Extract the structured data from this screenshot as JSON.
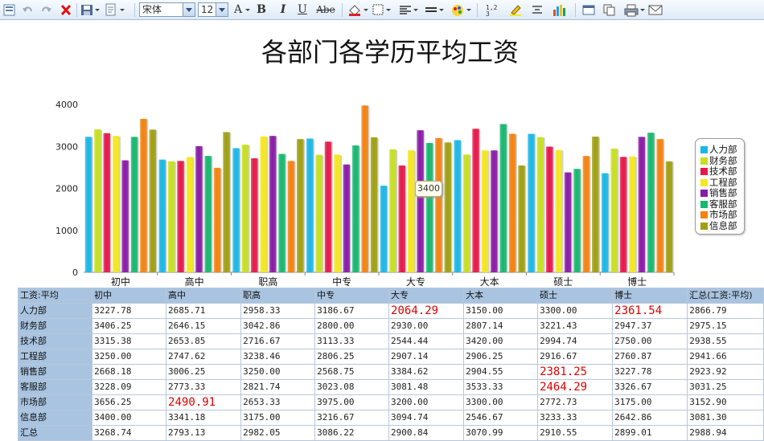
{
  "toolbar": {
    "font_name": "宋体",
    "font_size": "12",
    "bold_label": "B",
    "italic_label": "I",
    "underline_label": "U",
    "strike_label": "Abe",
    "font_color_label": "A",
    "icons": [
      "undo-icon",
      "redo-icon",
      "delete-icon",
      "save-icon",
      "page-setup-icon",
      "font-color-icon",
      "bold-icon",
      "italic-icon",
      "underline-icon",
      "strikethrough-icon",
      "fill-color-icon",
      "border-icon",
      "align-icon",
      "line-style-icon",
      "palette-icon",
      "formula-icon",
      "highlight-icon",
      "format-icon",
      "chart-icon",
      "window-icon",
      "copy-icon",
      "print-icon",
      "mail-icon"
    ]
  },
  "chart_data": {
    "type": "bar",
    "title": "各部门各学历平均工资",
    "categories": [
      "初中",
      "高中",
      "职高",
      "中专",
      "大专",
      "大本",
      "硕士",
      "博士"
    ],
    "ylim": [
      0,
      4000
    ],
    "yticks": [
      "0",
      "1000",
      "2000",
      "3000",
      "4000"
    ],
    "grid": false,
    "legend_position": "right",
    "series": [
      {
        "name": "人力部",
        "color": "#1ab8e8",
        "values": [
          3227.78,
          2685.71,
          2958.33,
          3186.67,
          2064.29,
          3150.0,
          3300.0,
          2361.54
        ]
      },
      {
        "name": "财务部",
        "color": "#c8e020",
        "values": [
          3406.25,
          2646.15,
          3042.86,
          2800.0,
          2930.0,
          2807.14,
          3221.43,
          2947.37
        ]
      },
      {
        "name": "技术部",
        "color": "#e8174a",
        "values": [
          3315.38,
          2653.85,
          2716.67,
          3113.33,
          2544.44,
          3420.0,
          2994.74,
          2750.0
        ]
      },
      {
        "name": "工程部",
        "color": "#f5e81e",
        "values": [
          3250.0,
          2747.62,
          3238.46,
          2806.25,
          2907.14,
          2906.25,
          2916.67,
          2760.87
        ]
      },
      {
        "name": "销售部",
        "color": "#8a1aa8",
        "values": [
          2668.18,
          3006.25,
          3250.0,
          2568.75,
          3384.62,
          2904.55,
          2381.25,
          3227.78
        ]
      },
      {
        "name": "客服部",
        "color": "#16b870",
        "values": [
          3228.09,
          2773.33,
          2821.74,
          3023.08,
          3081.48,
          3533.33,
          2464.29,
          3326.67
        ]
      },
      {
        "name": "市场部",
        "color": "#f5820e",
        "values": [
          3656.25,
          2490.91,
          2653.33,
          3975.0,
          3200.0,
          3300.0,
          2772.73,
          3175.0
        ]
      },
      {
        "name": "信息部",
        "color": "#a0a010",
        "values": [
          3400.0,
          3341.18,
          3175.0,
          3216.67,
          3094.74,
          2546.67,
          3233.33,
          2642.86
        ]
      }
    ],
    "tooltip": "3400"
  },
  "table": {
    "corner": "工资:平均",
    "columns": [
      "初中",
      "高中",
      "职高",
      "中专",
      "大专",
      "大本",
      "硕士",
      "博士",
      "汇总(工资:平均)"
    ],
    "rows": [
      {
        "label": "人力部",
        "cells": [
          "3227.78",
          "2685.71",
          "2958.33",
          "3186.67",
          "2064.29",
          "3150.00",
          "3300.00",
          "2361.54",
          "2866.79"
        ]
      },
      {
        "label": "财务部",
        "cells": [
          "3406.25",
          "2646.15",
          "3042.86",
          "2800.00",
          "2930.00",
          "2807.14",
          "3221.43",
          "2947.37",
          "2975.15"
        ]
      },
      {
        "label": "技术部",
        "cells": [
          "3315.38",
          "2653.85",
          "2716.67",
          "3113.33",
          "2544.44",
          "3420.00",
          "2994.74",
          "2750.00",
          "2938.55"
        ]
      },
      {
        "label": "工程部",
        "cells": [
          "3250.00",
          "2747.62",
          "3238.46",
          "2806.25",
          "2907.14",
          "2906.25",
          "2916.67",
          "2760.87",
          "2941.66"
        ]
      },
      {
        "label": "销售部",
        "cells": [
          "2668.18",
          "3006.25",
          "3250.00",
          "2568.75",
          "3384.62",
          "2904.55",
          "2381.25",
          "3227.78",
          "2923.92"
        ]
      },
      {
        "label": "客服部",
        "cells": [
          "3228.09",
          "2773.33",
          "2821.74",
          "3023.08",
          "3081.48",
          "3533.33",
          "2464.29",
          "3326.67",
          "3031.25"
        ]
      },
      {
        "label": "市场部",
        "cells": [
          "3656.25",
          "2490.91",
          "2653.33",
          "3975.00",
          "3200.00",
          "3300.00",
          "2772.73",
          "3175.00",
          "3152.90"
        ]
      },
      {
        "label": "信息部",
        "cells": [
          "3400.00",
          "3341.18",
          "3175.00",
          "3216.67",
          "3094.74",
          "2546.67",
          "3233.33",
          "2642.86",
          "3081.30"
        ]
      },
      {
        "label": "汇总",
        "cells": [
          "3268.74",
          "2793.13",
          "2982.05",
          "3086.22",
          "2900.84",
          "3070.99",
          "2910.55",
          "2899.01",
          "2988.94"
        ]
      }
    ],
    "highlighted": [
      [
        0,
        4
      ],
      [
        0,
        7
      ],
      [
        4,
        6
      ],
      [
        5,
        6
      ],
      [
        6,
        1
      ]
    ]
  }
}
